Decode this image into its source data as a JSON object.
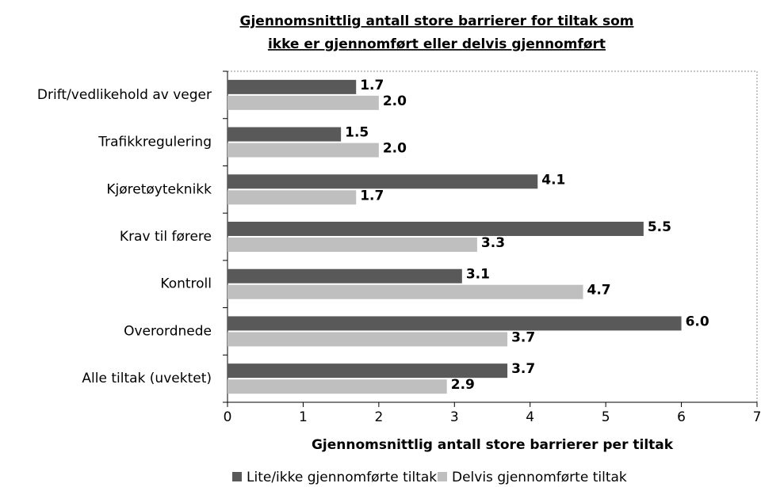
{
  "chart_data": {
    "type": "barh",
    "title": [
      "Gjennomsnittlig antall store barrierer for tiltak som",
      "ikke er gjennomført eller delvis gjennomført"
    ],
    "categories": [
      "Drift/vedlikehold av veger",
      "Trafikkregulering",
      "Kjøretøyteknikk",
      "Krav til førere",
      "Kontroll",
      "Overordnede",
      "Alle tiltak (uvektet)"
    ],
    "series": [
      {
        "name": "Lite/ikke gjennomførte tiltak",
        "color": "#595959",
        "values": [
          1.7,
          1.5,
          4.1,
          5.5,
          3.1,
          6.0,
          3.7
        ],
        "value_labels": [
          "1.7",
          "1.5",
          "4.1",
          "5.5",
          "3.1",
          "6.0",
          "3.7"
        ]
      },
      {
        "name": "Delvis gjennomførte tiltak",
        "color": "#bfbfbf",
        "values": [
          2.0,
          2.0,
          1.7,
          3.3,
          4.7,
          3.7,
          2.9
        ],
        "value_labels": [
          "2.0",
          "2.0",
          "1.7",
          "3.3",
          "4.7",
          "3.7",
          "2.9"
        ]
      }
    ],
    "x_label": "Gjennomsnittlig antall store barrierer per tiltak",
    "xlim": [
      0,
      7
    ],
    "xticks": [
      0,
      1,
      2,
      3,
      4,
      5,
      6,
      7
    ],
    "grid": false,
    "legend": "bottom"
  }
}
